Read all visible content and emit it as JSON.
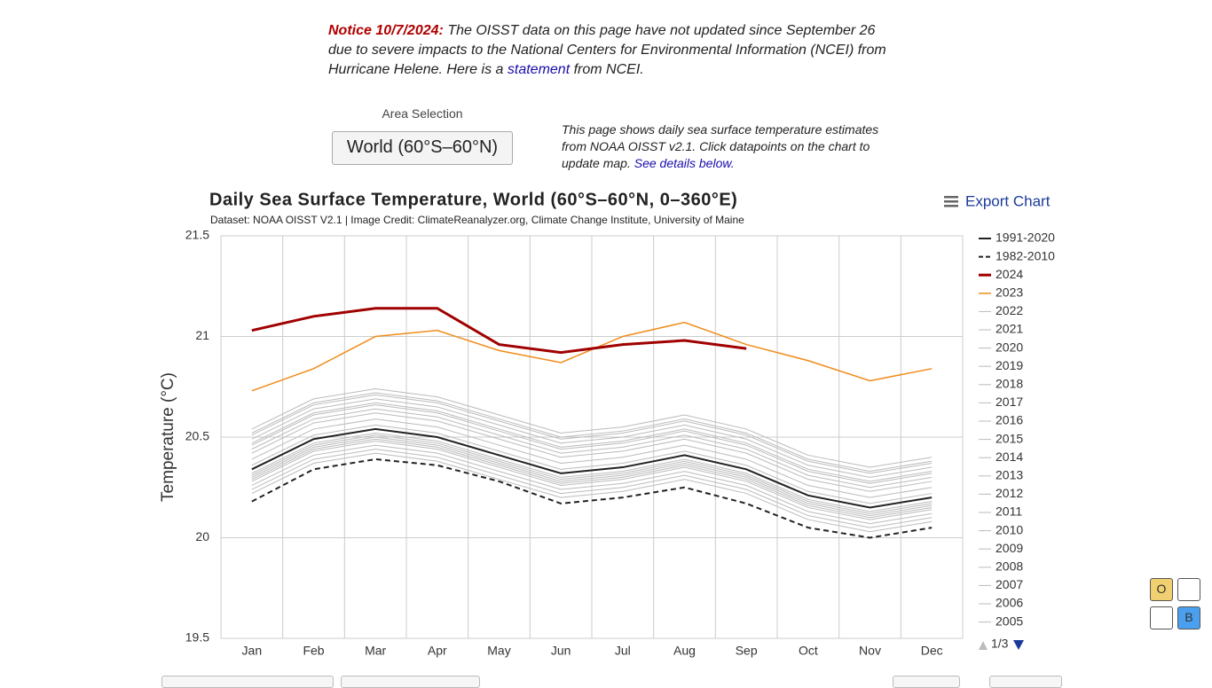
{
  "notice": {
    "label": "Notice 10/7/2024:",
    "text_before": "The OISST data on this page have not updated since September 26 due to severe impacts to the National Centers for Environmental Information (NCEI) from Hurricane Helene. Here is a",
    "link": "statement",
    "text_after": "from NCEI."
  },
  "area_selection": {
    "label": "Area Selection",
    "value": "World (60°S–60°N)"
  },
  "description": {
    "text": "This page shows daily sea surface temperature estimates from NOAA OISST v2.1. Click datapoints on the chart to update map.",
    "link": "See details below."
  },
  "export_label": "Export Chart",
  "toggles": [
    "O",
    "B"
  ],
  "chart_data": {
    "type": "line",
    "title": "Daily Sea Surface Temperature, World (60°S–60°N, 0–360°E)",
    "subtitle": "Dataset: NOAA OISST V2.1 | Image Credit: ClimateReanalyzer.org, Climate Change Institute, University of Maine",
    "y_label": "Temperature (°C)",
    "legend_page": "1/3",
    "grid": true,
    "legend": "right",
    "categories": [
      "Jan",
      "Feb",
      "Mar",
      "Apr",
      "May",
      "Jun",
      "Jul",
      "Aug",
      "Sep",
      "Oct",
      "Nov",
      "Dec"
    ],
    "ylim": [
      19.5,
      21.5
    ],
    "yticks": [
      19.5,
      20,
      20.5,
      21,
      21.5
    ],
    "series": [
      {
        "name": "1991-2020",
        "color": "#222222",
        "width": 2,
        "dashed": false,
        "values": [
          20.34,
          20.49,
          20.54,
          20.5,
          20.41,
          20.32,
          20.35,
          20.41,
          20.34,
          20.21,
          20.15,
          20.2
        ]
      },
      {
        "name": "1982-2010",
        "color": "#222222",
        "width": 2,
        "dashed": true,
        "values": [
          20.18,
          20.34,
          20.39,
          20.36,
          20.28,
          20.17,
          20.2,
          20.25,
          20.17,
          20.05,
          20.0,
          20.05
        ]
      },
      {
        "name": "2024",
        "color": "#a00000",
        "width": 3,
        "dashed": false,
        "values": [
          21.03,
          21.1,
          21.14,
          21.14,
          20.96,
          20.92,
          20.96,
          20.98,
          20.94,
          null,
          null,
          null
        ]
      },
      {
        "name": "2023",
        "color": "#f08c1a",
        "width": 1.5,
        "dashed": false,
        "values": [
          20.73,
          20.84,
          21.0,
          21.03,
          20.93,
          20.87,
          21.0,
          21.07,
          20.96,
          20.88,
          20.78,
          20.84
        ]
      },
      {
        "name": "2022",
        "color": "#bbbbbb",
        "width": 1,
        "dashed": false,
        "values": [
          20.49,
          20.64,
          20.69,
          20.65,
          20.56,
          20.47,
          20.5,
          20.56,
          20.49,
          20.36,
          20.3,
          20.35
        ]
      },
      {
        "name": "2021",
        "color": "#bbbbbb",
        "width": 1,
        "dashed": false,
        "values": [
          20.46,
          20.61,
          20.66,
          20.62,
          20.53,
          20.44,
          20.47,
          20.53,
          20.46,
          20.33,
          20.27,
          20.32
        ]
      },
      {
        "name": "2020",
        "color": "#bbbbbb",
        "width": 1,
        "dashed": false,
        "values": [
          20.52,
          20.67,
          20.72,
          20.68,
          20.59,
          20.5,
          20.53,
          20.59,
          20.52,
          20.39,
          20.33,
          20.38
        ]
      },
      {
        "name": "2019",
        "color": "#bbbbbb",
        "width": 1,
        "dashed": false,
        "values": [
          20.51,
          20.66,
          20.71,
          20.67,
          20.58,
          20.49,
          20.52,
          20.58,
          20.51,
          20.38,
          20.32,
          20.37
        ]
      },
      {
        "name": "2018",
        "color": "#bbbbbb",
        "width": 1,
        "dashed": false,
        "values": [
          20.42,
          20.57,
          20.62,
          20.58,
          20.49,
          20.4,
          20.43,
          20.49,
          20.42,
          20.29,
          20.23,
          20.28
        ]
      },
      {
        "name": "2017",
        "color": "#bbbbbb",
        "width": 1,
        "dashed": false,
        "values": [
          20.44,
          20.59,
          20.64,
          20.6,
          20.51,
          20.42,
          20.45,
          20.51,
          20.44,
          20.31,
          20.25,
          20.3
        ]
      },
      {
        "name": "2016",
        "color": "#bbbbbb",
        "width": 1,
        "dashed": false,
        "values": [
          20.54,
          20.69,
          20.74,
          20.7,
          20.61,
          20.52,
          20.55,
          20.61,
          20.54,
          20.41,
          20.35,
          20.4
        ]
      },
      {
        "name": "2015",
        "color": "#bbbbbb",
        "width": 1,
        "dashed": false,
        "values": [
          20.47,
          20.62,
          20.67,
          20.63,
          20.54,
          20.45,
          20.48,
          20.54,
          20.47,
          20.34,
          20.28,
          20.33
        ]
      },
      {
        "name": "2014",
        "color": "#bbbbbb",
        "width": 1,
        "dashed": false,
        "values": [
          20.36,
          20.51,
          20.56,
          20.52,
          20.43,
          20.34,
          20.37,
          20.43,
          20.36,
          20.23,
          20.17,
          20.22
        ]
      },
      {
        "name": "2013",
        "color": "#bbbbbb",
        "width": 1,
        "dashed": false,
        "values": [
          20.32,
          20.47,
          20.52,
          20.48,
          20.39,
          20.3,
          20.33,
          20.39,
          20.32,
          20.19,
          20.13,
          20.18
        ]
      },
      {
        "name": "2012",
        "color": "#bbbbbb",
        "width": 1,
        "dashed": false,
        "values": [
          20.31,
          20.46,
          20.51,
          20.47,
          20.38,
          20.29,
          20.32,
          20.38,
          20.31,
          20.18,
          20.12,
          20.17
        ]
      },
      {
        "name": "2011",
        "color": "#bbbbbb",
        "width": 1,
        "dashed": false,
        "values": [
          20.26,
          20.41,
          20.46,
          20.42,
          20.33,
          20.24,
          20.27,
          20.33,
          20.26,
          20.13,
          20.07,
          20.12
        ]
      },
      {
        "name": "2010",
        "color": "#bbbbbb",
        "width": 1,
        "dashed": false,
        "values": [
          20.39,
          20.54,
          20.59,
          20.55,
          20.46,
          20.37,
          20.4,
          20.46,
          20.39,
          20.26,
          20.2,
          20.25
        ]
      },
      {
        "name": "2009",
        "color": "#bbbbbb",
        "width": 1,
        "dashed": false,
        "values": [
          20.3,
          20.45,
          20.5,
          20.46,
          20.37,
          20.28,
          20.31,
          20.37,
          20.3,
          20.17,
          20.11,
          20.16
        ]
      },
      {
        "name": "2008",
        "color": "#bbbbbb",
        "width": 1,
        "dashed": false,
        "values": [
          20.22,
          20.37,
          20.42,
          20.38,
          20.29,
          20.2,
          20.23,
          20.29,
          20.22,
          20.09,
          20.03,
          20.08
        ]
      },
      {
        "name": "2007",
        "color": "#bbbbbb",
        "width": 1,
        "dashed": false,
        "values": [
          20.24,
          20.39,
          20.44,
          20.4,
          20.31,
          20.22,
          20.25,
          20.31,
          20.24,
          20.11,
          20.05,
          20.1
        ]
      },
      {
        "name": "2006",
        "color": "#bbbbbb",
        "width": 1,
        "dashed": false,
        "values": [
          20.28,
          20.43,
          20.48,
          20.44,
          20.35,
          20.26,
          20.29,
          20.35,
          20.28,
          20.15,
          20.09,
          20.14
        ]
      },
      {
        "name": "2005",
        "color": "#bbbbbb",
        "width": 1,
        "dashed": false,
        "values": [
          20.29,
          20.44,
          20.49,
          20.45,
          20.36,
          20.27,
          20.3,
          20.36,
          20.29,
          20.16,
          20.1,
          20.15
        ]
      }
    ]
  }
}
